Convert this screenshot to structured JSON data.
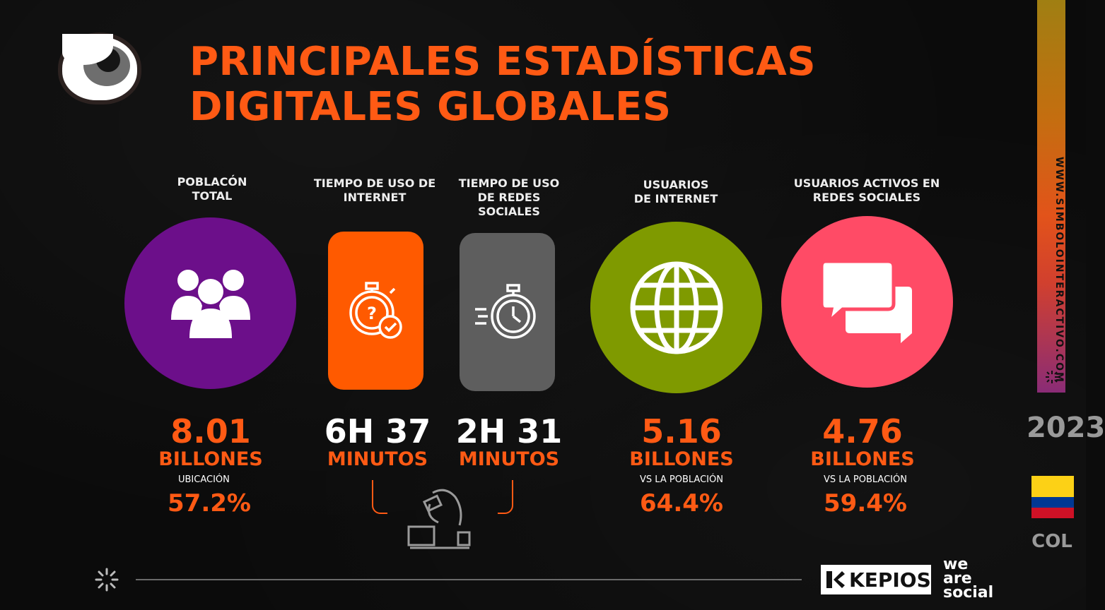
{
  "header": {
    "title_line1": "PRINCIPALES ESTADÍSTICAS",
    "title_line2": "DIGITALES GLOBALES"
  },
  "colors": {
    "accent": "#ff5a14",
    "purple": "#6c0f8a",
    "orange": "#ff5a00",
    "gray": "#5e5e5e",
    "green": "#7f9a00",
    "pink": "#ff4b66"
  },
  "stats": {
    "poblacion": {
      "label": "POBLACÓN TOTAL",
      "icon": "people-icon",
      "value": "8.01",
      "unit": "BILLONES",
      "sub": "UBICACIÓN",
      "pct": "57.2%"
    },
    "tiempo_internet": {
      "label": "TIEMPO DE USO DE INTERNET",
      "icon": "stopwatch-question-icon",
      "value": "6H 37",
      "unit": "MINUTOS"
    },
    "tiempo_redes": {
      "label": "TIEMPO DE USO DE REDES SOCIALES",
      "icon": "fast-stopwatch-icon",
      "value": "2H 31",
      "unit": "MINUTOS"
    },
    "usuarios_internet": {
      "label": "USUARIOS DE INTERNET",
      "icon": "globe-icon",
      "value": "5.16",
      "unit": "BILLONES",
      "sub": "VS LA POBLACIÓN",
      "pct": "64.4%"
    },
    "usuarios_redes": {
      "label": "USUARIOS ACTIVOS EN REDES SOCIALES",
      "icon": "chat-bubbles-icon",
      "value": "4.76",
      "unit": "BILLONES",
      "sub": "VS LA POBLACIÓN",
      "pct": "59.4%"
    }
  },
  "sidebar": {
    "url": "WWW.SIMBOLOINTERACTIVO.COM",
    "year": "2023",
    "country": "COL"
  },
  "footer": {
    "kepios": "KEPIOS",
    "we_are_social": "we are social"
  }
}
